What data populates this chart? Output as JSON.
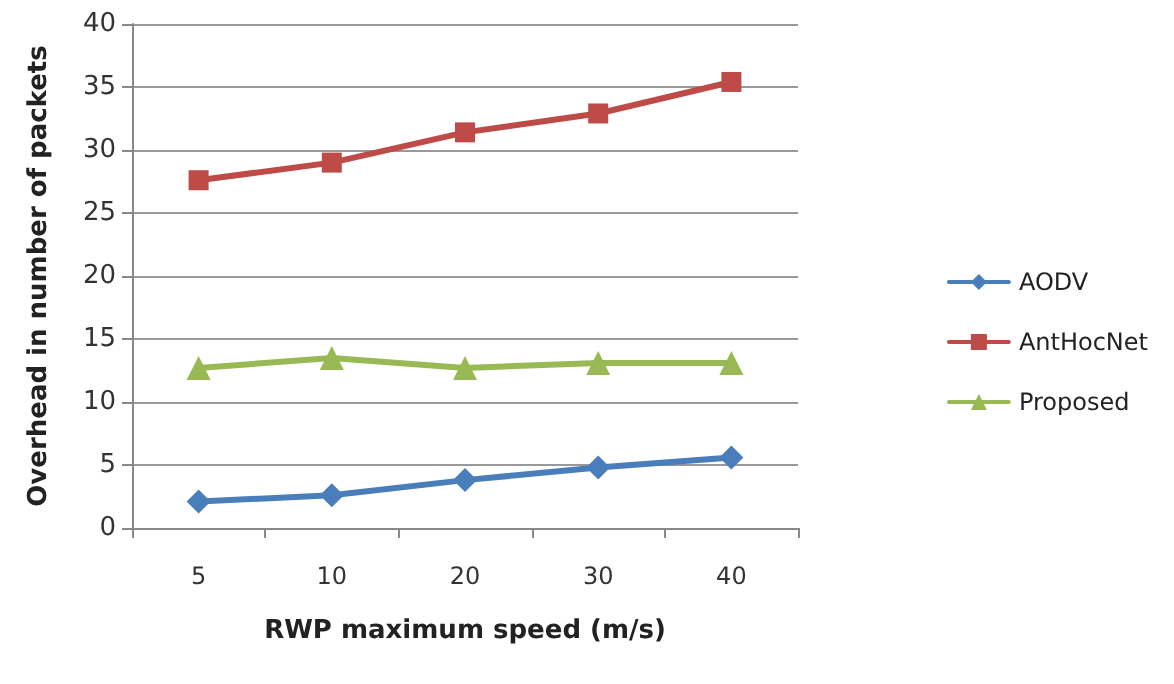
{
  "chart_data": {
    "type": "line",
    "xlabel": "RWP maximum speed (m/s)",
    "ylabel": "Overhead in number of packets",
    "categories": [
      "5",
      "10",
      "20",
      "30",
      "40"
    ],
    "series": [
      {
        "name": "AODV",
        "color": "#4a7ebb",
        "marker": "diamond",
        "values": [
          2.1,
          2.6,
          3.8,
          4.8,
          5.6
        ]
      },
      {
        "name": "AntHocNet",
        "color": "#be4b48",
        "marker": "square",
        "values": [
          27.6,
          29.0,
          31.4,
          32.9,
          35.4
        ]
      },
      {
        "name": "Proposed",
        "color": "#98b954",
        "marker": "triangle",
        "values": [
          12.7,
          13.5,
          12.7,
          13.1,
          13.1
        ]
      }
    ],
    "ylim": [
      0,
      40
    ],
    "yticks": [
      0,
      5,
      10,
      15,
      20,
      25,
      30,
      35,
      40
    ],
    "grid": "y",
    "legend": "right"
  }
}
